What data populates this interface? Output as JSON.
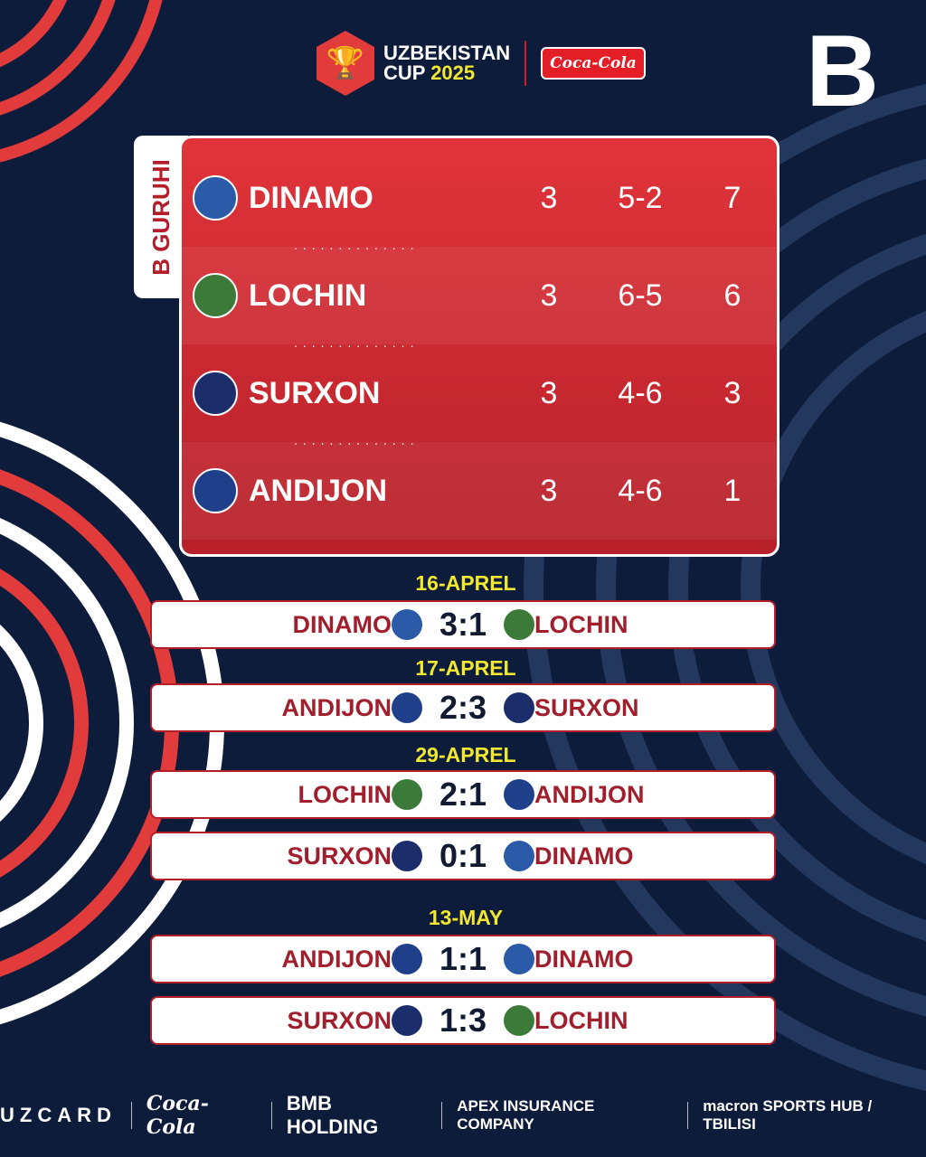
{
  "header": {
    "title_line1": "UZBEKISTAN",
    "title_line2": "CUP",
    "year": "2025",
    "sponsor_badge": "Coca-Cola",
    "group_letter": "B"
  },
  "standings": {
    "group_label": "B GURUHI",
    "rows": [
      {
        "team": "DINAMO",
        "played": "3",
        "goals": "5-2",
        "points": "7",
        "color": "#2a5aa8"
      },
      {
        "team": "LOCHIN",
        "played": "3",
        "goals": "6-5",
        "points": "6",
        "color": "#3c7a3a"
      },
      {
        "team": "SURXON",
        "played": "3",
        "goals": "4-6",
        "points": "3",
        "color": "#1c2d6b"
      },
      {
        "team": "ANDIJON",
        "played": "3",
        "goals": "4-6",
        "points": "1",
        "color": "#1f3f8a"
      }
    ]
  },
  "matches": [
    {
      "date": "16-APREL",
      "home": "DINAMO",
      "score": "3:1",
      "away": "LOCHIN"
    },
    {
      "date": "17-APREL",
      "home": "ANDIJON",
      "score": "2:3",
      "away": "SURXON"
    },
    {
      "date": "29-APREL",
      "home": "LOCHIN",
      "score": "2:1",
      "away": "ANDIJON"
    },
    {
      "date": "",
      "home": "SURXON",
      "score": "0:1",
      "away": "DINAMO"
    },
    {
      "date": "13-MAY",
      "home": "ANDIJON",
      "score": "1:1",
      "away": "DINAMO"
    },
    {
      "date": "",
      "home": "SURXON",
      "score": "1:3",
      "away": "LOCHIN"
    }
  ],
  "sponsors": [
    "UZCARD",
    "Coca-Cola",
    "BMB HOLDING",
    "APEX INSURANCE COMPANY",
    "macron SPORTS HUB / TBILISI"
  ],
  "colors": {
    "background": "#0e1c3b",
    "accent_red": "#d72c34",
    "date_yellow": "#f2e832"
  }
}
